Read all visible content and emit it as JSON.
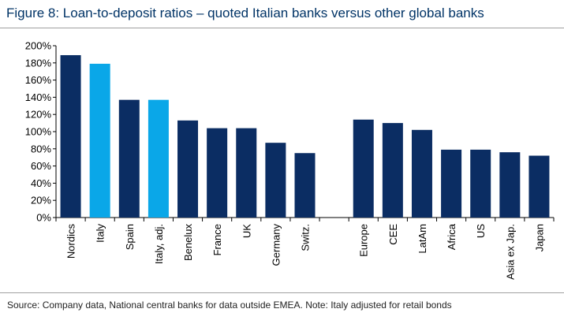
{
  "chart_data": {
    "type": "bar",
    "title": "Figure 8: Loan-to-deposit ratios – quoted Italian banks versus other global banks",
    "xlabel": "",
    "ylabel": "",
    "ylim": [
      0,
      200
    ],
    "y_tick_step": 20,
    "y_tick_labels": [
      "0%",
      "20%",
      "40%",
      "60%",
      "80%",
      "100%",
      "120%",
      "140%",
      "160%",
      "180%",
      "200%"
    ],
    "grid": false,
    "legend": "none",
    "categories": [
      "Nordics",
      "Italy",
      "Spain",
      "Italy, adj.",
      "Benelux",
      "France",
      "UK",
      "Germany",
      "Switz.",
      "",
      "Europe",
      "CEE",
      "LatAm",
      "Africa",
      "US",
      "Asia ex Jap.",
      "Japan"
    ],
    "values": [
      189,
      179,
      137,
      137,
      113,
      104,
      104,
      87,
      75,
      null,
      114,
      110,
      102,
      79,
      79,
      76,
      72
    ],
    "highlight": [
      false,
      true,
      false,
      true,
      false,
      false,
      false,
      false,
      false,
      false,
      false,
      false,
      false,
      false,
      false,
      false,
      false
    ],
    "colors": {
      "bar": "#0b2d63",
      "highlight": "#0aa7e8",
      "axis": "#000000",
      "text": "#000000"
    }
  },
  "footer": {
    "source": "Source: Company data, National central banks for data outside EMEA. Note: Italy adjusted for retail bonds"
  }
}
